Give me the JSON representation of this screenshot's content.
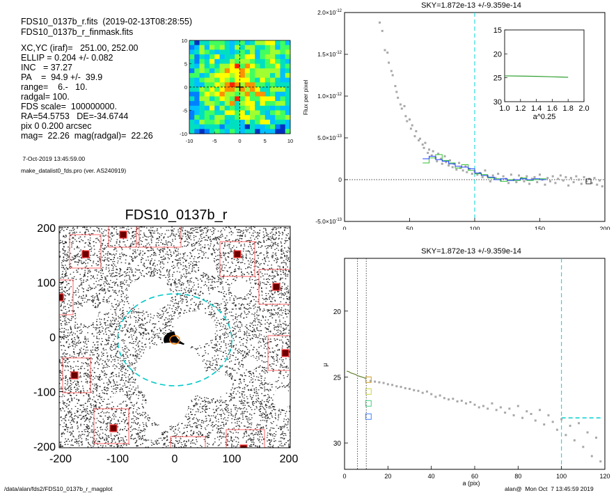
{
  "header": {
    "file_line": "FDS10_0137b_r.fits  (2019-02-13T08:28:55)",
    "mask_line": "FDS10_0137b_r_finmask.fits",
    "params": [
      "XC,YC (iraf)=   251.00, 252.00",
      "ELLIP = 0.204 +/- 0.082",
      "INC   = 37.27",
      "PA    =  94.9 +/-  39.9",
      "range=    6.-   10.",
      "radgal= 100.",
      "FDS scale=  100000000.",
      "RA=54.5753   DE=-34.6744",
      "pix 0 0.200 arcsec",
      "mag=  22.26  mag(radgal)=  22.26"
    ],
    "date_line": " 7-Oct-2019 13:45:59.00",
    "program_line": "make_datalist0_fds.pro (ver. AS240919)"
  },
  "footer": {
    "path": "/data/alan/fds2/FDS10_0137b_r_magplot",
    "user": "alan@  Mon Oct  7 13:45:59 2019"
  },
  "colors": {
    "sky_dash": "#00d0d0",
    "profile_blue": "#2040ff",
    "profile_green": "#30c030",
    "mask_red": "#ff4040",
    "points_gray": "#a0a0a0",
    "ellipse_cyan": "#00c8c8",
    "ellipse_orange": "#ff8000"
  },
  "chart_data": [
    {
      "id": "thumbnail",
      "type": "heatmap",
      "title": "",
      "xlim": [
        -10,
        10
      ],
      "ylim": [
        -10,
        10
      ],
      "xticks": [
        "-10",
        "-5",
        "0",
        "5",
        "10"
      ],
      "yticks": [
        "10",
        "5",
        "0",
        "-5",
        "-10"
      ]
    },
    {
      "id": "image",
      "type": "image",
      "title": "FDS10_0137b_r",
      "xlim": [
        -200,
        200
      ],
      "ylim": [
        -200,
        200
      ],
      "xticks": [
        "-200",
        "-100",
        "0",
        "100",
        "200"
      ],
      "yticks": [
        "200",
        "100",
        "0",
        "-100",
        "-200"
      ]
    },
    {
      "id": "flux",
      "type": "scatter",
      "title": "SKY=1.872e-13 +/-9.359e-14",
      "ylabel": "Flux per pixel",
      "xlim": [
        0,
        200
      ],
      "ylim": [
        -5e-13,
        2e-12
      ],
      "xticks": [
        "0",
        "50",
        "100",
        "150",
        "200"
      ],
      "yticks": [
        {
          "m": "2.0",
          "e": "-12",
          "v": 2e-12
        },
        {
          "m": "1.5",
          "e": "-12",
          "v": 1.5e-12
        },
        {
          "m": "1.0",
          "e": "-12",
          "v": 1e-12
        },
        {
          "m": "5.0",
          "e": "-13",
          "v": 5e-13
        },
        {
          "m": "0",
          "e": "",
          "v": 0
        },
        {
          "m": "-5.0",
          "e": "-13",
          "v": -5e-13
        }
      ],
      "vline": 100,
      "inset": {
        "xlabel": "a^0.25",
        "xlim": [
          1.0,
          2.0
        ],
        "ylim": [
          30,
          15
        ],
        "xticks": [
          "1.0",
          "1.2",
          "1.4",
          "1.6",
          "1.8",
          "2.0"
        ],
        "yticks": [
          "15",
          "20",
          "25",
          "30"
        ],
        "line_x": [
          1.0,
          1.2,
          1.4,
          1.6,
          1.7,
          1.8
        ],
        "line_y": [
          24.6,
          24.65,
          24.7,
          24.8,
          24.85,
          24.9
        ]
      },
      "step_blue": {
        "x": [
          60,
          65,
          70,
          75,
          80,
          85,
          90,
          95,
          100,
          105,
          110,
          115,
          120,
          125,
          130,
          135,
          140,
          145,
          150
        ],
        "y": [
          2.5e-13,
          2.8e-13,
          2.4e-13,
          2.2e-13,
          1.9e-13,
          1.6e-13,
          1.5e-13,
          1.3e-13,
          8e-14,
          5e-14,
          3e-14,
          0,
          1e-14,
          -1e-14,
          0,
          1e-14,
          0,
          1e-14,
          0
        ]
      },
      "step_green": {
        "x": [
          60,
          65,
          70,
          75,
          80,
          85,
          90,
          95,
          100,
          105,
          110,
          115,
          120,
          125,
          130,
          135,
          140,
          145,
          150
        ],
        "y": [
          2e-13,
          2.6e-13,
          3e-13,
          2.3e-13,
          2e-13,
          1.4e-13,
          1.8e-13,
          1.1e-13,
          7e-14,
          6e-14,
          2e-14,
          1e-14,
          -2e-14,
          0,
          -1e-14,
          2e-14,
          -1e-14,
          0,
          1e-14
        ]
      },
      "points": {
        "x": [
          27,
          29,
          31,
          33,
          34,
          36,
          37,
          39,
          40,
          41,
          43,
          44,
          46,
          47,
          48,
          50,
          51,
          52,
          54,
          55,
          57,
          58,
          60,
          61,
          62,
          64,
          65,
          67,
          68,
          70,
          71,
          72,
          74,
          75,
          77,
          78,
          80,
          81,
          83,
          84,
          86,
          88,
          89,
          91,
          93,
          94,
          96,
          98,
          100,
          102,
          104,
          106,
          108,
          110,
          112,
          114,
          116,
          118,
          120,
          122,
          124,
          126,
          128,
          130,
          132,
          134,
          136,
          138,
          140,
          142,
          144,
          146,
          148,
          150,
          152,
          154,
          156,
          158,
          160,
          162,
          164,
          166,
          168,
          170,
          172,
          174,
          176,
          178,
          180,
          182,
          184,
          186,
          188,
          190,
          192,
          194,
          196,
          198
        ],
        "y": [
          1.88e-12,
          1.78e-12,
          1.55e-12,
          1.52e-12,
          1.4e-12,
          1.3e-12,
          1.25e-12,
          1.12e-12,
          1.05e-12,
          9.8e-13,
          9e-13,
          8.5e-13,
          8.8e-13,
          7.6e-13,
          7e-13,
          7.2e-13,
          6.1e-13,
          6.5e-13,
          5.2e-13,
          5.8e-13,
          4.7e-13,
          4.9e-13,
          4.2e-13,
          3.8e-13,
          4.4e-13,
          3.2e-13,
          3.6e-13,
          2.9e-13,
          3.4e-13,
          2.6e-13,
          2.2e-13,
          3.1e-13,
          2.5e-13,
          1.9e-13,
          2.8e-13,
          2.1e-13,
          1.7e-13,
          2.3e-13,
          1.5e-13,
          1.9e-13,
          1.2e-13,
          2e-13,
          1.4e-13,
          1.1e-13,
          1.6e-13,
          9e-14,
          1.3e-13,
          7e-14,
          1e-13,
          6e-14,
          8e-14,
          3e-14,
          1.1e-13,
          4e-14,
          -2e-14,
          5e-14,
          2e-14,
          7e-14,
          -1e-14,
          4e-14,
          1e-14,
          -4e-14,
          6e-14,
          0,
          -3e-14,
          5e-14,
          2e-14,
          -2e-14,
          4e-14,
          -5e-14,
          1e-14,
          3e-14,
          -3e-14,
          6e-14,
          0,
          -6e-14,
          2e-14,
          -2e-14,
          4e-14,
          -4e-14,
          1e-14,
          5e-14,
          -1e-14,
          3e-14,
          -7e-14,
          2e-14,
          -3e-14,
          4e-14,
          0,
          -5e-14,
          3e-14,
          -2e-14,
          1e-14,
          -4e-14,
          2e-14,
          -6e-14,
          -1e-14,
          -8e-14
        ]
      }
    },
    {
      "id": "mu",
      "type": "scatter",
      "title": "SKY=1.872e-13 +/-9.359e-14",
      "xlabel": "a (pix)",
      "ylabel": "μ",
      "xlim": [
        0,
        120
      ],
      "ylim": [
        32,
        16
      ],
      "xticks": [
        "0",
        "20",
        "40",
        "60",
        "80",
        "100",
        "120"
      ],
      "yticks": [
        "20",
        "25",
        "30"
      ],
      "vlines_dotted": [
        6,
        10
      ],
      "vline": 100,
      "sky_level": 28.1,
      "marker_boxes": [
        {
          "x": 11,
          "y": 25.2,
          "color": "#d0a020"
        },
        {
          "x": 11,
          "y": 26.1,
          "color": "#d0d040"
        },
        {
          "x": 11,
          "y": 27.0,
          "color": "#40d080"
        },
        {
          "x": 11,
          "y": 28.0,
          "color": "#4080ff"
        }
      ],
      "profile_line": {
        "x": [
          1,
          2,
          3,
          4,
          5,
          6,
          7,
          8,
          9,
          10
        ],
        "y": [
          24.55,
          24.6,
          24.7,
          24.75,
          24.8,
          24.9,
          24.95,
          25.0,
          25.05,
          25.15
        ]
      },
      "points": {
        "x": [
          12,
          14,
          16,
          18,
          20,
          22,
          24,
          26,
          28,
          30,
          32,
          34,
          36,
          38,
          40,
          42,
          44,
          46,
          48,
          50,
          52,
          54,
          56,
          58,
          60,
          62,
          64,
          66,
          68,
          70,
          72,
          74,
          76,
          78,
          80,
          82,
          84,
          86,
          88,
          90,
          92,
          94,
          96,
          98,
          100,
          102,
          104,
          106,
          108,
          110,
          112,
          114,
          116,
          118
        ],
        "y": [
          25.3,
          25.35,
          25.4,
          25.45,
          25.55,
          25.6,
          25.7,
          25.75,
          25.85,
          25.9,
          26.0,
          26.05,
          26.2,
          26.1,
          26.3,
          26.5,
          26.4,
          26.6,
          26.7,
          26.65,
          26.85,
          26.8,
          27.0,
          26.9,
          27.1,
          27.3,
          27.2,
          27.4,
          27.0,
          27.5,
          27.3,
          27.7,
          27.4,
          27.9,
          27.2,
          28.1,
          27.6,
          27.8,
          28.3,
          27.5,
          28.6,
          27.9,
          28.4,
          29.0,
          28.2,
          29.4,
          28.7,
          29.8,
          28.5,
          30.3,
          29.2,
          31.0,
          29.6,
          31.4
        ]
      }
    }
  ]
}
